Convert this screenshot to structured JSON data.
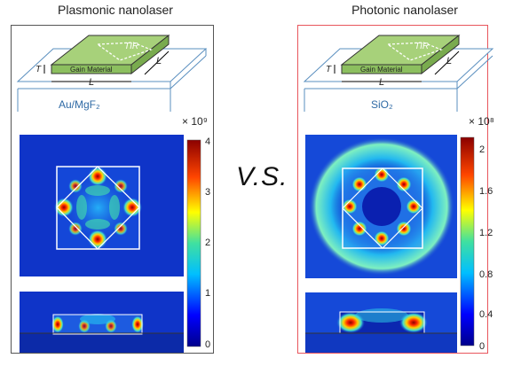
{
  "left": {
    "title": "Plasmonic nanolaser",
    "substrate": "Au/MgF₂",
    "diagram": {
      "material": "Gain Material",
      "tir": "TIR",
      "length": "L",
      "thickness": "T"
    },
    "colorbar": {
      "multiplier": "× 10⁹",
      "ticks": [
        "4",
        "3",
        "2",
        "1",
        "0"
      ]
    }
  },
  "right": {
    "title": "Photonic nanolaser",
    "substrate": "SiO₂",
    "diagram": {
      "material": "Gain Material",
      "tir": "TIR",
      "length": "L",
      "thickness": "T"
    },
    "colorbar": {
      "multiplier": "× 10⁸",
      "ticks": [
        "2",
        "1.6",
        "1.2",
        "0.8",
        "0.4",
        "0"
      ]
    }
  },
  "center": {
    "comparison": "V.S."
  },
  "colors": {
    "field_low": "#0d1f9e",
    "field_high": "#a00000",
    "photonic_border": "#e8555c"
  }
}
